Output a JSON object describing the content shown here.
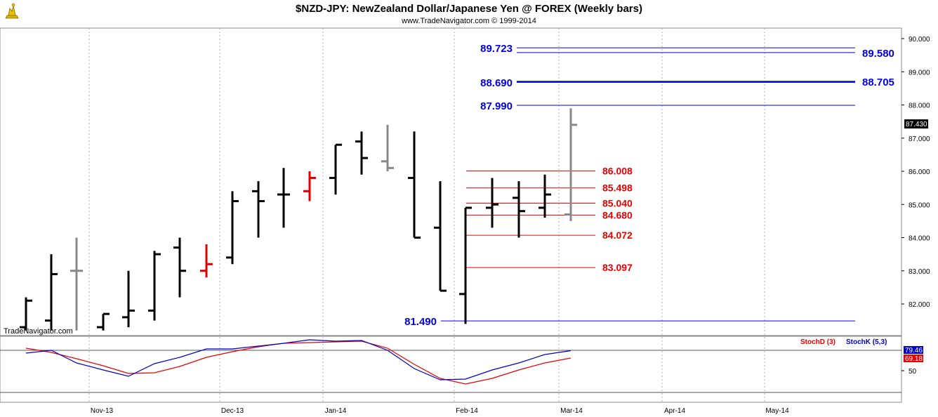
{
  "header": {
    "title": "$NZD-JPY:  NewZealand Dollar/Japanese Yen @ FOREX  (Weekly bars)",
    "subtitle": "www.TradeNavigator.com © 1999-2014",
    "watermark": "TradeNavigator.com",
    "logo_icon": "trade-navigator-logo-icon"
  },
  "colors": {
    "up_bar": "#000000",
    "down_bar": "#e00000",
    "neutral_bar": "#888888",
    "blue_level": "#0000e6",
    "red_level": "#e60000",
    "stoch_d": "#e60000",
    "stoch_k": "#0000cc",
    "last_price_badge": "#000000"
  },
  "chart_data": [
    {
      "type": "ohlc",
      "title": "$NZD-JPY:  NewZealand Dollar/Japanese Yen @ FOREX  (Weekly bars)",
      "ylim": [
        81.2,
        90.3
      ],
      "y_ticks": [
        "90.000",
        "89.000",
        "88.000",
        "87.000",
        "86.000",
        "85.000",
        "84.000",
        "83.000",
        "82.000"
      ],
      "x_labels": [
        "Nov-13",
        "Dec-13",
        "Jan-14",
        "Feb-14",
        "Mar-14",
        "Apr-14",
        "May-14"
      ],
      "last_price": "87.430",
      "bars": [
        {
          "o": 81.3,
          "h": 82.2,
          "l": 81.2,
          "c": 82.1,
          "color": "up"
        },
        {
          "o": 81.5,
          "h": 83.5,
          "l": 81.2,
          "c": 82.9,
          "color": "up"
        },
        {
          "o": 83.0,
          "h": 84.0,
          "l": 81.2,
          "c": 83.0,
          "color": "neutral"
        },
        {
          "o": 81.3,
          "h": 81.7,
          "l": 81.2,
          "c": 81.7,
          "color": "up"
        },
        {
          "o": 81.6,
          "h": 83.0,
          "l": 81.3,
          "c": 81.8,
          "color": "up"
        },
        {
          "o": 81.8,
          "h": 83.6,
          "l": 81.5,
          "c": 83.5,
          "color": "up"
        },
        {
          "o": 83.7,
          "h": 84.0,
          "l": 82.2,
          "c": 83.0,
          "color": "up"
        },
        {
          "o": 83.0,
          "h": 83.8,
          "l": 82.8,
          "c": 83.2,
          "color": "down"
        },
        {
          "o": 83.4,
          "h": 85.4,
          "l": 83.2,
          "c": 85.1,
          "color": "up"
        },
        {
          "o": 85.4,
          "h": 85.7,
          "l": 84.0,
          "c": 85.1,
          "color": "up"
        },
        {
          "o": 85.3,
          "h": 86.1,
          "l": 84.3,
          "c": 85.3,
          "color": "up"
        },
        {
          "o": 85.4,
          "h": 86.0,
          "l": 85.1,
          "c": 85.8,
          "color": "down"
        },
        {
          "o": 85.8,
          "h": 86.8,
          "l": 85.3,
          "c": 86.8,
          "color": "up"
        },
        {
          "o": 86.9,
          "h": 87.2,
          "l": 85.9,
          "c": 86.4,
          "color": "up"
        },
        {
          "o": 86.3,
          "h": 87.4,
          "l": 86.0,
          "c": 86.1,
          "color": "neutral"
        },
        {
          "o": 85.8,
          "h": 87.2,
          "l": 84.0,
          "c": 84.0,
          "color": "up"
        },
        {
          "o": 84.3,
          "h": 85.7,
          "l": 82.4,
          "c": 82.4,
          "color": "up"
        },
        {
          "o": 82.3,
          "h": 84.9,
          "l": 81.4,
          "c": 84.9,
          "color": "up"
        },
        {
          "o": 84.9,
          "h": 85.8,
          "l": 84.3,
          "c": 85.0,
          "color": "up"
        },
        {
          "o": 85.2,
          "h": 85.7,
          "l": 84.0,
          "c": 84.8,
          "color": "up"
        },
        {
          "o": 84.9,
          "h": 85.9,
          "l": 84.6,
          "c": 85.3,
          "color": "up"
        },
        {
          "o": 84.7,
          "h": 87.9,
          "l": 84.5,
          "c": 87.4,
          "color": "neutral"
        }
      ],
      "levels_blue": [
        {
          "value": 89.723,
          "label": "89.723",
          "side": "left"
        },
        {
          "value": 89.58,
          "label": "89.580",
          "side": "right"
        },
        {
          "value": 88.69,
          "label": "88.690",
          "side": "left"
        },
        {
          "value": 88.705,
          "label": "88.705",
          "side": "right"
        },
        {
          "value": 87.99,
          "label": "87.990",
          "side": "left"
        },
        {
          "value": 81.49,
          "label": "81.490",
          "side": "left"
        }
      ],
      "levels_red": [
        {
          "value": 86.008,
          "label": "86.008"
        },
        {
          "value": 85.498,
          "label": "85.498"
        },
        {
          "value": 85.04,
          "label": "85.040"
        },
        {
          "value": 84.68,
          "label": "84.680"
        },
        {
          "value": 84.072,
          "label": "84.072"
        },
        {
          "value": 83.097,
          "label": "83.097"
        }
      ]
    },
    {
      "type": "line",
      "ylim": [
        0,
        100
      ],
      "y_ticks": [
        "50"
      ],
      "series": [
        {
          "name": "StochD (3)",
          "color": "#e60000",
          "values": [
            83,
            77,
            68,
            58,
            47,
            48,
            57,
            70,
            78,
            85,
            90,
            91,
            92,
            93,
            83,
            60,
            40,
            32,
            40,
            52,
            62,
            69
          ]
        },
        {
          "name": "StochK (5,3)",
          "color": "#0000cc",
          "values": [
            76,
            80,
            62,
            52,
            43,
            61,
            70,
            82,
            82,
            86,
            90,
            95,
            93,
            94,
            80,
            54,
            38,
            39,
            52,
            62,
            74,
            79.46
          ]
        }
      ],
      "readouts": [
        "79.46",
        "69.18"
      ]
    }
  ]
}
